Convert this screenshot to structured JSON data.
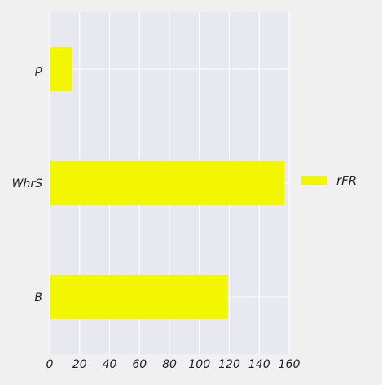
{
  "chart_data": {
    "type": "bar",
    "orientation": "horizontal",
    "categories": [
      "p",
      "WhrS",
      "B"
    ],
    "series": [
      {
        "name": "rFR",
        "values": [
          15,
          157,
          119
        ],
        "color": "#f2f700"
      }
    ],
    "xlim": [
      0,
      160
    ],
    "xticks": [
      0,
      20,
      40,
      60,
      80,
      100,
      120,
      140,
      160
    ],
    "xtick_labels": [
      "0",
      "20",
      "40",
      "60",
      "80",
      "100",
      "120",
      "140",
      "160"
    ],
    "grid": true,
    "legend_position": "right",
    "plot_background": "#e8e8f0",
    "figure_background": "#f0f0f0",
    "title": "",
    "xlabel": "",
    "ylabel": ""
  }
}
